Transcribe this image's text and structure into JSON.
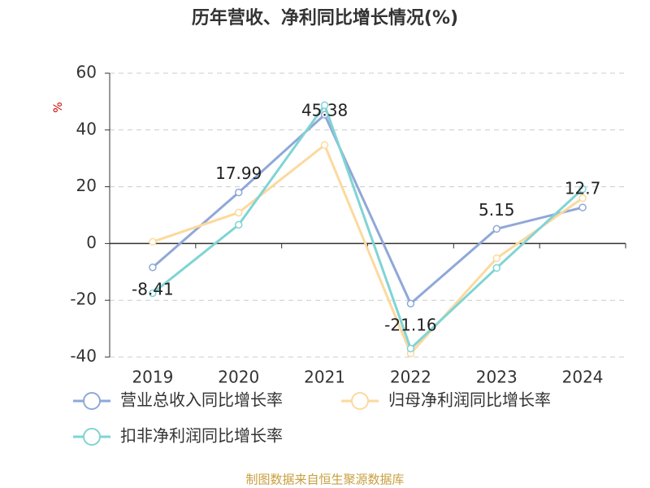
{
  "chart_data": {
    "type": "line",
    "title": "历年营收、净利同比增长情况(%)",
    "y_label": "%",
    "categories": [
      "2019",
      "2020",
      "2021",
      "2022",
      "2023",
      "2024"
    ],
    "series": [
      {
        "name": "营业总收入同比增长率",
        "color": "#8fa8d8",
        "values": [
          -8.41,
          17.99,
          45.38,
          -21.16,
          5.15,
          12.7
        ],
        "labels": true
      },
      {
        "name": "归母净利润同比增长率",
        "color": "#fcd99e",
        "values": [
          0.6,
          10.9,
          34.7,
          -38.7,
          -5.2,
          16.0
        ]
      },
      {
        "name": "扣非净利润同比增长率",
        "color": "#80d4d4",
        "values": [
          -17.5,
          6.6,
          48.7,
          -37.0,
          -8.6,
          19.2
        ]
      }
    ],
    "ylim": [
      -40,
      60
    ],
    "yticks": [
      -40,
      -20,
      0,
      20,
      40,
      60
    ],
    "grid": true,
    "source": "制图数据来自恒生聚源数据库"
  }
}
